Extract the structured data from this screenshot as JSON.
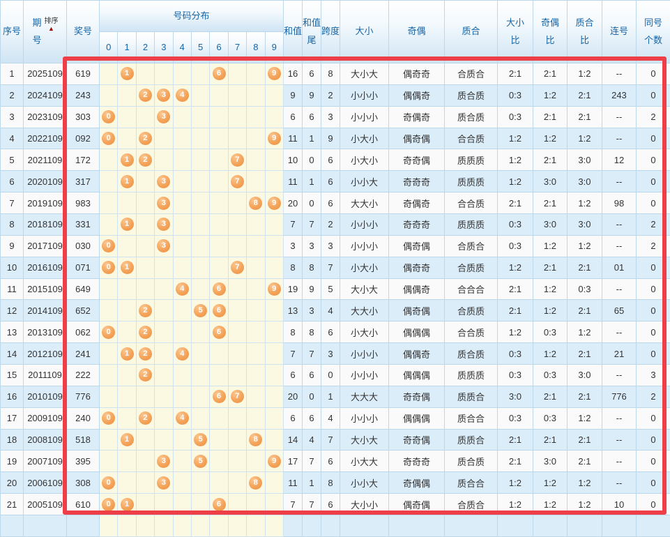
{
  "header": {
    "col_seq": "序号",
    "col_period": "期号",
    "sort_label": "排序",
    "sort_arrow": "▲",
    "col_number": "奖号",
    "col_distribution": "号码分布",
    "digits": [
      "0",
      "1",
      "2",
      "3",
      "4",
      "5",
      "6",
      "7",
      "8",
      "9"
    ],
    "col_sum": "和值",
    "col_sum_tail": "和值尾",
    "col_span": "跨度",
    "col_size": "大小",
    "col_parity": "奇偶",
    "col_prime": "质合",
    "col_size_ratio": "大小比",
    "col_parity_ratio": "奇偶比",
    "col_prime_ratio": "质合比",
    "col_consecutive": "连号",
    "col_same_count": "同号个数"
  },
  "colors": {
    "header_text": "#1565a8",
    "ball_orange": "#f09a4a",
    "highlight_red": "#ee3e48",
    "row_alt_blue": "#dcedfa",
    "distribution_yellow": "#fcf9e2",
    "grid_border": "#bdd7ea",
    "sort_arrow_red": "#990000"
  },
  "rows": [
    {
      "seq": "1",
      "period": "2025109",
      "number": "619",
      "digits": [
        1,
        6,
        9
      ],
      "sum": "16",
      "sum_tail": "6",
      "span": "8",
      "size": "大小大",
      "parity": "偶奇奇",
      "prime": "合质合",
      "size_ratio": "2:1",
      "parity_ratio": "2:1",
      "prime_ratio": "1:2",
      "consecutive": "--",
      "same_count": "0"
    },
    {
      "seq": "2",
      "period": "2024109",
      "number": "243",
      "digits": [
        2,
        3,
        4
      ],
      "sum": "9",
      "sum_tail": "9",
      "span": "2",
      "size": "小小小",
      "parity": "偶偶奇",
      "prime": "质合质",
      "size_ratio": "0:3",
      "parity_ratio": "1:2",
      "prime_ratio": "2:1",
      "consecutive": "243",
      "same_count": "0"
    },
    {
      "seq": "3",
      "period": "2023109",
      "number": "303",
      "digits": [
        0,
        3
      ],
      "sum": "6",
      "sum_tail": "6",
      "span": "3",
      "size": "小小小",
      "parity": "奇偶奇",
      "prime": "质合质",
      "size_ratio": "0:3",
      "parity_ratio": "2:1",
      "prime_ratio": "2:1",
      "consecutive": "--",
      "same_count": "2"
    },
    {
      "seq": "4",
      "period": "2022109",
      "number": "092",
      "digits": [
        0,
        2,
        9
      ],
      "sum": "11",
      "sum_tail": "1",
      "span": "9",
      "size": "小大小",
      "parity": "偶奇偶",
      "prime": "合合质",
      "size_ratio": "1:2",
      "parity_ratio": "1:2",
      "prime_ratio": "1:2",
      "consecutive": "--",
      "same_count": "0"
    },
    {
      "seq": "5",
      "period": "2021109",
      "number": "172",
      "digits": [
        1,
        2,
        7
      ],
      "sum": "10",
      "sum_tail": "0",
      "span": "6",
      "size": "小大小",
      "parity": "奇奇偶",
      "prime": "质质质",
      "size_ratio": "1:2",
      "parity_ratio": "2:1",
      "prime_ratio": "3:0",
      "consecutive": "12",
      "same_count": "0"
    },
    {
      "seq": "6",
      "period": "2020109",
      "number": "317",
      "digits": [
        1,
        3,
        7
      ],
      "sum": "11",
      "sum_tail": "1",
      "span": "6",
      "size": "小小大",
      "parity": "奇奇奇",
      "prime": "质质质",
      "size_ratio": "1:2",
      "parity_ratio": "3:0",
      "prime_ratio": "3:0",
      "consecutive": "--",
      "same_count": "0"
    },
    {
      "seq": "7",
      "period": "2019109",
      "number": "983",
      "digits": [
        3,
        8,
        9
      ],
      "sum": "20",
      "sum_tail": "0",
      "span": "6",
      "size": "大大小",
      "parity": "奇偶奇",
      "prime": "合合质",
      "size_ratio": "2:1",
      "parity_ratio": "2:1",
      "prime_ratio": "1:2",
      "consecutive": "98",
      "same_count": "0"
    },
    {
      "seq": "8",
      "period": "2018109",
      "number": "331",
      "digits": [
        1,
        3
      ],
      "sum": "7",
      "sum_tail": "7",
      "span": "2",
      "size": "小小小",
      "parity": "奇奇奇",
      "prime": "质质质",
      "size_ratio": "0:3",
      "parity_ratio": "3:0",
      "prime_ratio": "3:0",
      "consecutive": "--",
      "same_count": "2"
    },
    {
      "seq": "9",
      "period": "2017109",
      "number": "030",
      "digits": [
        0,
        3
      ],
      "sum": "3",
      "sum_tail": "3",
      "span": "3",
      "size": "小小小",
      "parity": "偶奇偶",
      "prime": "合质合",
      "size_ratio": "0:3",
      "parity_ratio": "1:2",
      "prime_ratio": "1:2",
      "consecutive": "--",
      "same_count": "2"
    },
    {
      "seq": "10",
      "period": "2016109",
      "number": "071",
      "digits": [
        0,
        1,
        7
      ],
      "sum": "8",
      "sum_tail": "8",
      "span": "7",
      "size": "小大小",
      "parity": "偶奇奇",
      "prime": "合质质",
      "size_ratio": "1:2",
      "parity_ratio": "2:1",
      "prime_ratio": "2:1",
      "consecutive": "01",
      "same_count": "0"
    },
    {
      "seq": "11",
      "period": "2015109",
      "number": "649",
      "digits": [
        4,
        6,
        9
      ],
      "sum": "19",
      "sum_tail": "9",
      "span": "5",
      "size": "大小大",
      "parity": "偶偶奇",
      "prime": "合合合",
      "size_ratio": "2:1",
      "parity_ratio": "1:2",
      "prime_ratio": "0:3",
      "consecutive": "--",
      "same_count": "0"
    },
    {
      "seq": "12",
      "period": "2014109",
      "number": "652",
      "digits": [
        2,
        5,
        6
      ],
      "sum": "13",
      "sum_tail": "3",
      "span": "4",
      "size": "大大小",
      "parity": "偶奇偶",
      "prime": "合质质",
      "size_ratio": "2:1",
      "parity_ratio": "1:2",
      "prime_ratio": "2:1",
      "consecutive": "65",
      "same_count": "0"
    },
    {
      "seq": "13",
      "period": "2013109",
      "number": "062",
      "digits": [
        0,
        2,
        6
      ],
      "sum": "8",
      "sum_tail": "8",
      "span": "6",
      "size": "小大小",
      "parity": "偶偶偶",
      "prime": "合合质",
      "size_ratio": "1:2",
      "parity_ratio": "0:3",
      "prime_ratio": "1:2",
      "consecutive": "--",
      "same_count": "0"
    },
    {
      "seq": "14",
      "period": "2012109",
      "number": "241",
      "digits": [
        1,
        2,
        4
      ],
      "sum": "7",
      "sum_tail": "7",
      "span": "3",
      "size": "小小小",
      "parity": "偶偶奇",
      "prime": "质合质",
      "size_ratio": "0:3",
      "parity_ratio": "1:2",
      "prime_ratio": "2:1",
      "consecutive": "21",
      "same_count": "0"
    },
    {
      "seq": "15",
      "period": "2011109",
      "number": "222",
      "digits": [
        2
      ],
      "sum": "6",
      "sum_tail": "6",
      "span": "0",
      "size": "小小小",
      "parity": "偶偶偶",
      "prime": "质质质",
      "size_ratio": "0:3",
      "parity_ratio": "0:3",
      "prime_ratio": "3:0",
      "consecutive": "--",
      "same_count": "3"
    },
    {
      "seq": "16",
      "period": "2010109",
      "number": "776",
      "digits": [
        6,
        7
      ],
      "sum": "20",
      "sum_tail": "0",
      "span": "1",
      "size": "大大大",
      "parity": "奇奇偶",
      "prime": "质质合",
      "size_ratio": "3:0",
      "parity_ratio": "2:1",
      "prime_ratio": "2:1",
      "consecutive": "776",
      "same_count": "2"
    },
    {
      "seq": "17",
      "period": "2009109",
      "number": "240",
      "digits": [
        0,
        2,
        4
      ],
      "sum": "6",
      "sum_tail": "6",
      "span": "4",
      "size": "小小小",
      "parity": "偶偶偶",
      "prime": "质合合",
      "size_ratio": "0:3",
      "parity_ratio": "0:3",
      "prime_ratio": "1:2",
      "consecutive": "--",
      "same_count": "0"
    },
    {
      "seq": "18",
      "period": "2008109",
      "number": "518",
      "digits": [
        1,
        5,
        8
      ],
      "sum": "14",
      "sum_tail": "4",
      "span": "7",
      "size": "大小大",
      "parity": "奇奇偶",
      "prime": "质质合",
      "size_ratio": "2:1",
      "parity_ratio": "2:1",
      "prime_ratio": "2:1",
      "consecutive": "--",
      "same_count": "0"
    },
    {
      "seq": "19",
      "period": "2007109",
      "number": "395",
      "digits": [
        3,
        5,
        9
      ],
      "sum": "17",
      "sum_tail": "7",
      "span": "6",
      "size": "小大大",
      "parity": "奇奇奇",
      "prime": "质合质",
      "size_ratio": "2:1",
      "parity_ratio": "3:0",
      "prime_ratio": "2:1",
      "consecutive": "--",
      "same_count": "0"
    },
    {
      "seq": "20",
      "period": "2006109",
      "number": "308",
      "digits": [
        0,
        3,
        8
      ],
      "sum": "11",
      "sum_tail": "1",
      "span": "8",
      "size": "小小大",
      "parity": "奇偶偶",
      "prime": "质合合",
      "size_ratio": "1:2",
      "parity_ratio": "1:2",
      "prime_ratio": "1:2",
      "consecutive": "--",
      "same_count": "0"
    },
    {
      "seq": "21",
      "period": "2005109",
      "number": "610",
      "digits": [
        0,
        1,
        6
      ],
      "sum": "7",
      "sum_tail": "7",
      "span": "6",
      "size": "大小小",
      "parity": "偶奇偶",
      "prime": "合质合",
      "size_ratio": "1:2",
      "parity_ratio": "1:2",
      "prime_ratio": "1:2",
      "consecutive": "10",
      "same_count": "0"
    }
  ]
}
